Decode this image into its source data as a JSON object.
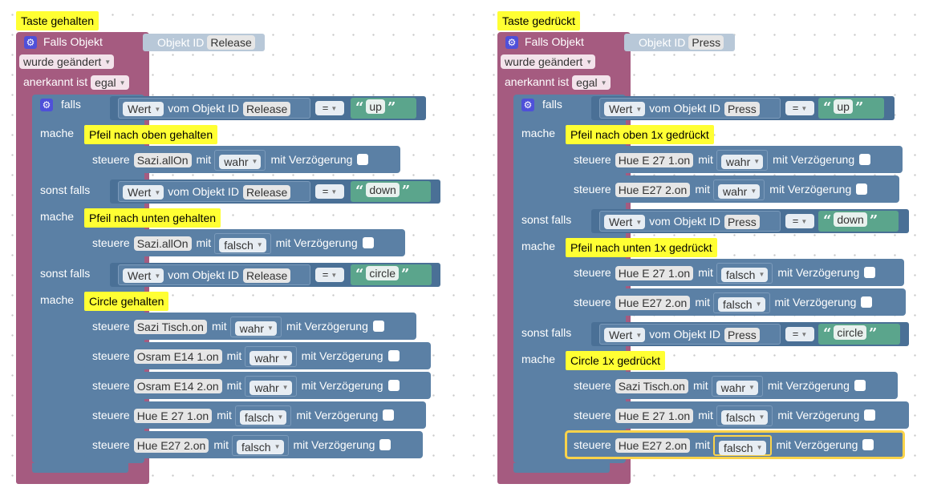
{
  "left": {
    "comment": "Taste gehalten",
    "trigger": {
      "falls_objekt": "Falls Objekt",
      "objekt_id_label": "Objekt ID",
      "objekt_id_value": "Release",
      "wurde_geaendert": "wurde geändert",
      "anerkannt_label": "anerkannt ist",
      "anerkannt_value": "egal"
    },
    "if_block": {
      "falls": "falls",
      "sonst_falls": "sonst falls",
      "mache": "mache",
      "branches": [
        {
          "cond": {
            "wert": "Wert",
            "vom_objekt": "vom Objekt ID",
            "oid": "Release",
            "op": "=",
            "str": "up"
          },
          "comment": "Pfeil nach oben gehalten",
          "stmts": [
            {
              "steuere": "steuere",
              "oid": "Sazi.allOn",
              "mit": "mit",
              "val": "wahr",
              "delay": "mit Verzögerung"
            }
          ]
        },
        {
          "cond": {
            "wert": "Wert",
            "vom_objekt": "vom Objekt ID",
            "oid": "Release",
            "op": "=",
            "str": "down"
          },
          "comment": "Pfeil nach unten gehalten",
          "stmts": [
            {
              "steuere": "steuere",
              "oid": "Sazi.allOn",
              "mit": "mit",
              "val": "falsch",
              "delay": "mit Verzögerung"
            }
          ]
        },
        {
          "cond": {
            "wert": "Wert",
            "vom_objekt": "vom Objekt ID",
            "oid": "Release",
            "op": "=",
            "str": "circle"
          },
          "comment": "Circle gehalten",
          "stmts": [
            {
              "steuere": "steuere",
              "oid": "Sazi Tisch.on",
              "mit": "mit",
              "val": "wahr",
              "delay": "mit Verzögerung"
            },
            {
              "steuere": "steuere",
              "oid": "Osram E14 1.on",
              "mit": "mit",
              "val": "wahr",
              "delay": "mit Verzögerung"
            },
            {
              "steuere": "steuere",
              "oid": "Osram E14 2.on",
              "mit": "mit",
              "val": "wahr",
              "delay": "mit Verzögerung"
            },
            {
              "steuere": "steuere",
              "oid": "Hue E 27 1.on",
              "mit": "mit",
              "val": "falsch",
              "delay": "mit Verzögerung"
            },
            {
              "steuere": "steuere",
              "oid": "Hue E27 2.on",
              "mit": "mit",
              "val": "falsch",
              "delay": "mit Verzögerung"
            }
          ]
        }
      ]
    }
  },
  "right": {
    "comment": "Taste gedrückt",
    "trigger": {
      "falls_objekt": "Falls Objekt",
      "objekt_id_label": "Objekt ID",
      "objekt_id_value": "Press",
      "wurde_geaendert": "wurde geändert",
      "anerkannt_label": "anerkannt ist",
      "anerkannt_value": "egal"
    },
    "if_block": {
      "falls": "falls",
      "sonst_falls": "sonst falls",
      "mache": "mache",
      "branches": [
        {
          "cond": {
            "wert": "Wert",
            "vom_objekt": "vom Objekt ID",
            "oid": "Press",
            "op": "=",
            "str": "up"
          },
          "comment": "Pfeil nach oben 1x gedrückt",
          "stmts": [
            {
              "steuere": "steuere",
              "oid": "Hue E 27 1.on",
              "mit": "mit",
              "val": "wahr",
              "delay": "mit Verzögerung"
            },
            {
              "steuere": "steuere",
              "oid": "Hue E27 2.on",
              "mit": "mit",
              "val": "wahr",
              "delay": "mit Verzögerung"
            }
          ]
        },
        {
          "cond": {
            "wert": "Wert",
            "vom_objekt": "vom Objekt ID",
            "oid": "Press",
            "op": "=",
            "str": "down"
          },
          "comment": "Pfeil nach unten 1x gedrückt",
          "stmts": [
            {
              "steuere": "steuere",
              "oid": "Hue E 27 1.on",
              "mit": "mit",
              "val": "falsch",
              "delay": "mit Verzögerung"
            },
            {
              "steuere": "steuere",
              "oid": "Hue E27 2.on",
              "mit": "mit",
              "val": "falsch",
              "delay": "mit Verzögerung"
            }
          ]
        },
        {
          "cond": {
            "wert": "Wert",
            "vom_objekt": "vom Objekt ID",
            "oid": "Press",
            "op": "=",
            "str": "circle"
          },
          "comment": "Circle 1x gedrückt",
          "stmts": [
            {
              "steuere": "steuere",
              "oid": "Sazi Tisch.on",
              "mit": "mit",
              "val": "wahr",
              "delay": "mit Verzögerung"
            },
            {
              "steuere": "steuere",
              "oid": "Hue E 27 1.on",
              "mit": "mit",
              "val": "falsch",
              "delay": "mit Verzögerung"
            },
            {
              "steuere": "steuere",
              "oid": "Hue E27 2.on",
              "mit": "mit",
              "val": "falsch",
              "delay": "mit Verzögerung",
              "selected": true
            }
          ]
        }
      ]
    }
  },
  "icons": {
    "gear": "gear-icon",
    "dropdown": "dropdown-arrow-icon"
  },
  "colors": {
    "trigger_block": "#a55b80",
    "logic_block": "#5b80a5",
    "text_block": "#5ba58c",
    "comment": "#ffff33",
    "selection": "#fbd34a"
  }
}
